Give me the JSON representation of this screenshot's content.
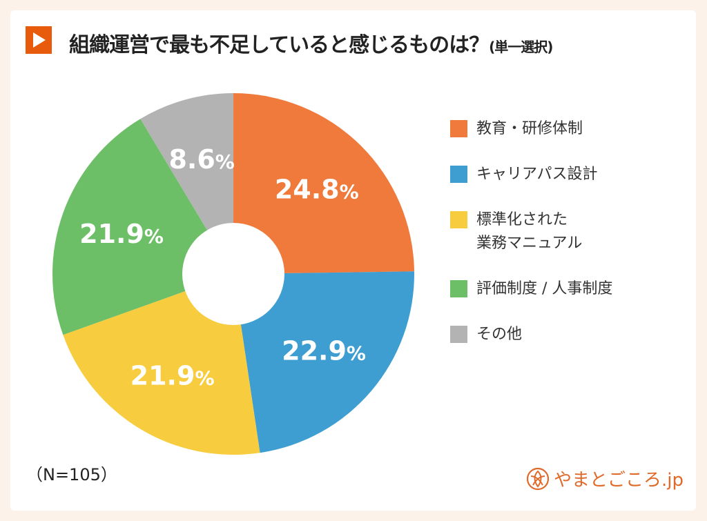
{
  "title": {
    "main": "組織運営で最も不足していると感じるものは？",
    "sub": "(単一選択)"
  },
  "sample_size": "（N=105）",
  "logo": {
    "text": "やまとごころ.jp",
    "icon": "yamatogokoro-logo-icon",
    "color": "#e06a2a"
  },
  "title_marker_color": "#e85a0c",
  "chart_data": {
    "type": "pie",
    "variant": "donut",
    "start": "top",
    "direction": "clockwise",
    "legend_position": "right",
    "categories": [
      "教育・研修体制",
      "キャリアパス設計",
      "標準化された業務マニュアル",
      "評価制度 / 人事制度",
      "その他"
    ],
    "legend_lines": [
      [
        "教育・研修体制"
      ],
      [
        "キャリアパス設計"
      ],
      [
        "標準化された",
        "業務マニュアル"
      ],
      [
        "評価制度 / 人事制度"
      ],
      [
        "その他"
      ]
    ],
    "values": [
      24.8,
      22.9,
      21.9,
      21.9,
      8.6
    ],
    "labels": [
      "24.8",
      "22.9",
      "21.9",
      "21.9",
      "8.6"
    ],
    "unit": "%",
    "colors": [
      "#ef7a3b",
      "#3f9ed1",
      "#f7cd3f",
      "#6cbf67",
      "#b3b3b3"
    ]
  }
}
